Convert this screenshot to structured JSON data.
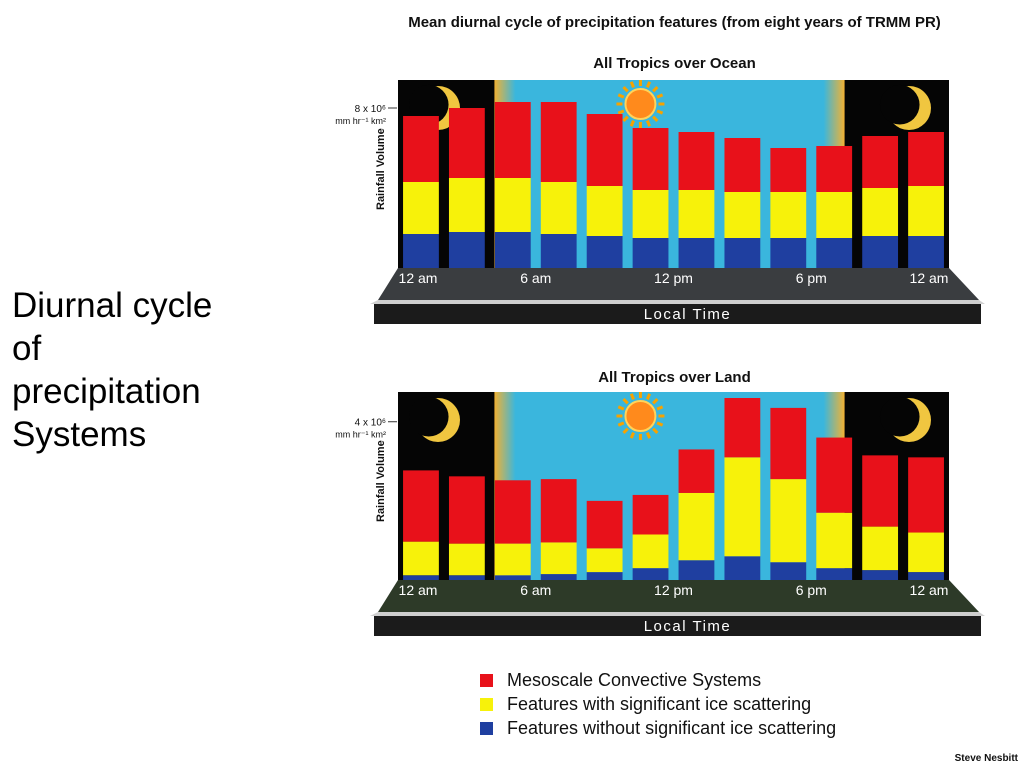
{
  "slide": {
    "title": "Diurnal cycle\nof\nprecipitation\nSystems"
  },
  "figure": {
    "title": "Mean diurnal cycle of precipitation features (from eight years of TRMM PR)",
    "credit": "Steve Nesbitt"
  },
  "colors": {
    "mcs": "#e8111a",
    "ice": "#f7f20a",
    "noice": "#1f3fa0",
    "night": "#050505",
    "day": "#3ab6dd",
    "dawn": "#f2b233",
    "base": "#1b1b1b"
  },
  "chart_data": [
    {
      "type": "bar",
      "stacked": true,
      "title": "All Tropics over Ocean",
      "xlabel": "Local Time",
      "ylabel": "Rainfall Volume",
      "y_tick": {
        "value": 8,
        "label_line1": "8 x 10⁶",
        "label_line2": "mm hr⁻¹ km²"
      },
      "ylim": [
        0,
        9.1
      ],
      "x_tick_labels": [
        "12 am",
        "6 am",
        "12 pm",
        "6 pm",
        "12 am"
      ],
      "categories": [
        "0",
        "2",
        "4",
        "6",
        "8",
        "10",
        "12",
        "14",
        "16",
        "18",
        "20",
        "22"
      ],
      "series": [
        {
          "name": "Features without significant ice scattering",
          "color_key": "noice",
          "values": [
            1.7,
            1.8,
            1.8,
            1.7,
            1.6,
            1.5,
            1.5,
            1.5,
            1.5,
            1.5,
            1.6,
            1.6
          ]
        },
        {
          "name": "Features with significant ice scattering",
          "color_key": "ice",
          "values": [
            2.6,
            2.7,
            2.7,
            2.6,
            2.5,
            2.4,
            2.4,
            2.3,
            2.3,
            2.3,
            2.4,
            2.5
          ]
        },
        {
          "name": "Mesoscale Convective Systems",
          "color_key": "mcs",
          "values": [
            3.3,
            3.5,
            3.8,
            4.0,
            3.6,
            3.1,
            2.9,
            2.7,
            2.2,
            2.3,
            2.6,
            2.7
          ]
        }
      ]
    },
    {
      "type": "bar",
      "stacked": true,
      "title": "All Tropics over Land",
      "xlabel": "Local Time",
      "ylabel": "Rainfall Volume",
      "y_tick": {
        "value": 4,
        "label_line1": "4 x 10⁶",
        "label_line2": "mm hr⁻¹ km²"
      },
      "ylim": [
        0,
        4.6
      ],
      "x_tick_labels": [
        "12 am",
        "6 am",
        "12 pm",
        "6 pm",
        "12 am"
      ],
      "categories": [
        "0",
        "2",
        "4",
        "6",
        "8",
        "10",
        "12",
        "14",
        "16",
        "18",
        "20",
        "22"
      ],
      "series": [
        {
          "name": "Features without significant ice scattering",
          "color_key": "noice",
          "values": [
            0.12,
            0.12,
            0.12,
            0.15,
            0.2,
            0.3,
            0.5,
            0.6,
            0.45,
            0.3,
            0.25,
            0.2
          ]
        },
        {
          "name": "Features with significant ice scattering",
          "color_key": "ice",
          "values": [
            0.85,
            0.8,
            0.8,
            0.8,
            0.6,
            0.85,
            1.7,
            2.5,
            2.1,
            1.4,
            1.1,
            1.0
          ]
        },
        {
          "name": "Mesoscale Convective Systems",
          "color_key": "mcs",
          "values": [
            1.8,
            1.7,
            1.6,
            1.6,
            1.2,
            1.0,
            1.1,
            1.5,
            1.8,
            1.9,
            1.8,
            1.9
          ]
        }
      ]
    }
  ],
  "legend": [
    {
      "label": "Mesoscale Convective Systems",
      "color_key": "mcs"
    },
    {
      "label": "Features with significant ice scattering",
      "color_key": "ice"
    },
    {
      "label": "Features without significant ice scattering",
      "color_key": "noice"
    }
  ]
}
